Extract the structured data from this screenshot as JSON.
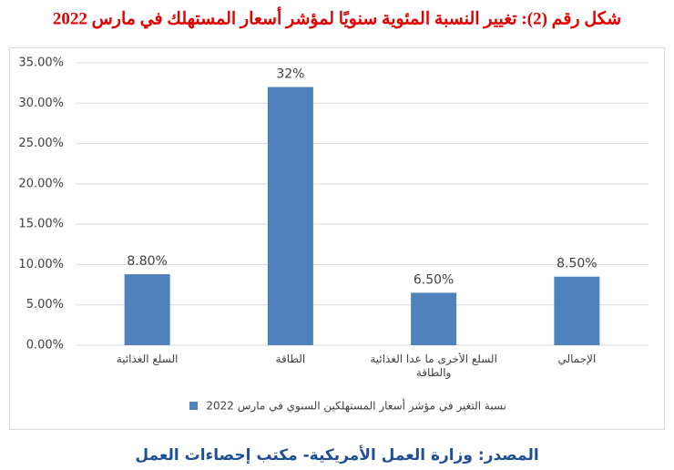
{
  "chart_data": {
    "type": "bar",
    "title": "شكل رقم (2): تغيير النسبة المئوية سنويًا لمؤشر أسعار المستهلك في مارس 2022",
    "categories": [
      "السلع الغذائية",
      "الطاقة",
      "السلع الأخرى ما عدا الغذائية والطاقة",
      "الإجمالي"
    ],
    "series": [
      {
        "name": "نسبة التغير في مؤشر أسعار المستهلكين السنوي في مارس 2022",
        "color": "#4f81bd",
        "values": [
          8.8,
          32,
          6.5,
          8.5
        ],
        "value_labels": [
          "8.80%",
          "32%",
          "6.50%",
          "8.50%"
        ]
      }
    ],
    "ylim": [
      0,
      35
    ],
    "yticks": [
      {
        "value": 0,
        "label": "0.00%"
      },
      {
        "value": 5,
        "label": "5.00%"
      },
      {
        "value": 10,
        "label": "10.00%"
      },
      {
        "value": 15,
        "label": "15.00%"
      },
      {
        "value": 20,
        "label": "20.00%"
      },
      {
        "value": 25,
        "label": "25.00%"
      },
      {
        "value": 30,
        "label": "30.00%"
      },
      {
        "value": 35,
        "label": "35.00%"
      }
    ],
    "grid": true,
    "legend": "bottom",
    "source": "المصدر: وزارة العمل الأمريكية- مكتب إحصاءات العمل"
  }
}
